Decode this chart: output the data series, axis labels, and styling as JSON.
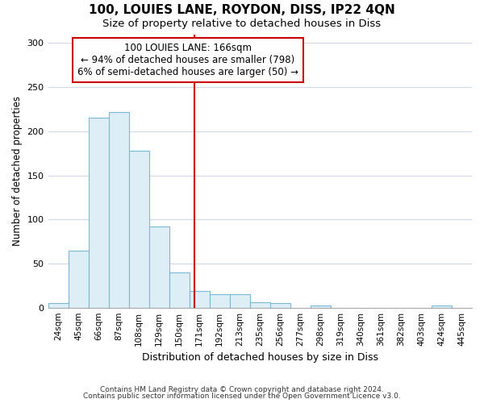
{
  "title1": "100, LOUIES LANE, ROYDON, DISS, IP22 4QN",
  "title2": "Size of property relative to detached houses in Diss",
  "xlabel": "Distribution of detached houses by size in Diss",
  "ylabel": "Number of detached properties",
  "bin_labels": [
    "24sqm",
    "45sqm",
    "66sqm",
    "87sqm",
    "108sqm",
    "129sqm",
    "150sqm",
    "171sqm",
    "192sqm",
    "213sqm",
    "235sqm",
    "256sqm",
    "277sqm",
    "298sqm",
    "319sqm",
    "340sqm",
    "361sqm",
    "382sqm",
    "403sqm",
    "424sqm",
    "445sqm"
  ],
  "bar_heights": [
    5,
    65,
    215,
    222,
    178,
    92,
    40,
    19,
    15,
    15,
    6,
    5,
    0,
    2,
    0,
    0,
    0,
    0,
    0,
    2,
    0
  ],
  "bar_fill_color": "#ddeef6",
  "bar_edge_color": "#7ab8d4",
  "vline_color": "#cc0000",
  "annotation_line1": "100 LOUIES LANE: 166sqm",
  "annotation_line2": "← 94% of detached houses are smaller (798)",
  "annotation_line3": "6% of semi-detached houses are larger (50) →",
  "annotation_box_color": "#ffffff",
  "annotation_box_edge": "#cc0000",
  "ylim": [
    0,
    310
  ],
  "yticks": [
    0,
    50,
    100,
    150,
    200,
    250,
    300
  ],
  "footer1": "Contains HM Land Registry data © Crown copyright and database right 2024.",
  "footer2": "Contains public sector information licensed under the Open Government Licence v3.0.",
  "bg_color": "#ffffff",
  "grid_color": "#d0d8e8"
}
